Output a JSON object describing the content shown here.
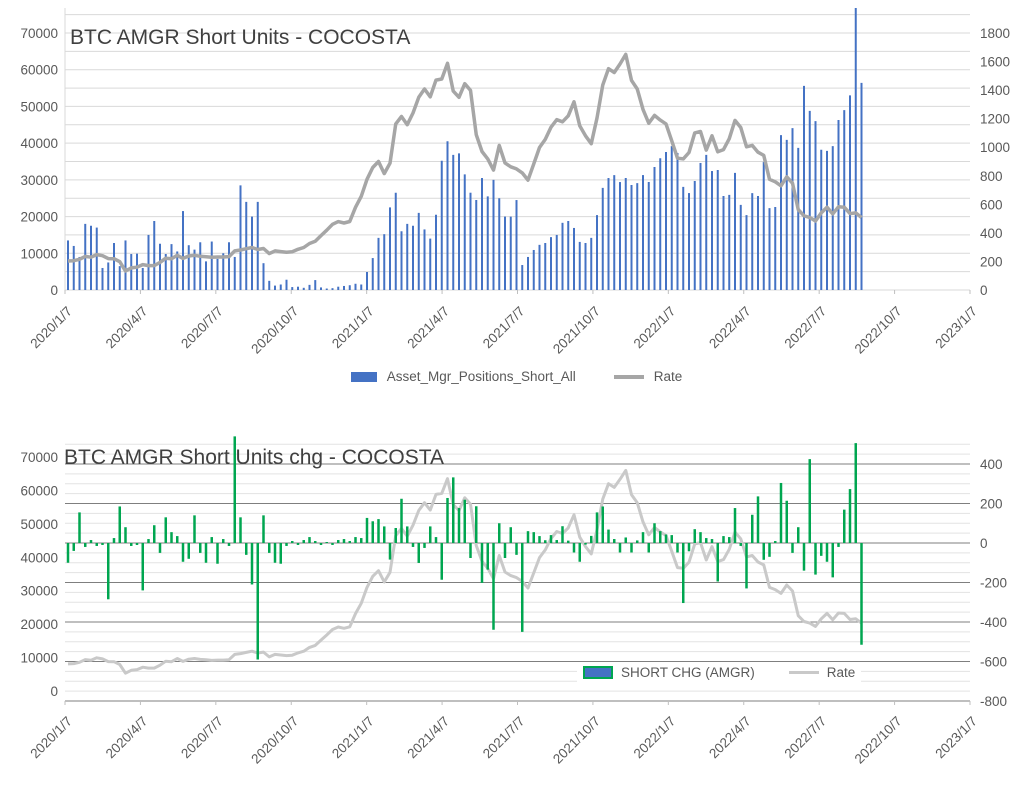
{
  "page": {
    "background": "#FFFFFF"
  },
  "colors": {
    "bar_blue": "#4472C4",
    "rate_line_top": "#A6A6A6",
    "bar_green": "#00A650",
    "rate_line_bottom": "#C9C9C9",
    "grid_minor_top": "#D9D9D9",
    "grid_minor_bottom": "#E3E3E3",
    "grid_major_bottom": "#7F7F7F",
    "axis_line": "#BFBFBF",
    "tick_text": "#595959",
    "title_text": "#404040"
  },
  "chart_data": [
    {
      "type": "bar",
      "subtype": "combo-bar-line",
      "title": "BTC AMGR Short Units - COCOSTA",
      "x_unit": "weekly COT dates from 2020/1/7 to 2022/8/30",
      "x_tick_labels": [
        "2020/1/7",
        "2020/4/7",
        "2020/7/7",
        "2020/10/7",
        "2021/1/7",
        "2021/4/7",
        "2021/7/7",
        "2021/10/7",
        "2022/1/7",
        "2022/4/7",
        "2022/7/7",
        "2022/10/7",
        "2023/1/7"
      ],
      "left_axis": {
        "min": 0,
        "max": 70000,
        "label_step": 10000,
        "grid_step": 5000
      },
      "right_axis": {
        "min": 0,
        "max": 1800,
        "label_step": 200
      },
      "legend_position": "bottom-center",
      "grid": true,
      "series": [
        {
          "name": "Asset_Mgr_Positions_Short_All",
          "type": "bar",
          "axis": "left",
          "color": "#4472C4",
          "values": [
            13500,
            12000,
            9000,
            18000,
            17500,
            17000,
            6000,
            7500,
            12800,
            6500,
            13500,
            9800,
            9900,
            6000,
            15000,
            18800,
            12600,
            9800,
            12500,
            10500,
            21500,
            12200,
            11000,
            13000,
            7800,
            13200,
            8500,
            10000,
            13000,
            9000,
            28500,
            24000,
            20000,
            24000,
            7300,
            2500,
            1200,
            1500,
            2800,
            800,
            900,
            600,
            1400,
            2700,
            700,
            400,
            500,
            900,
            1100,
            1300,
            1700,
            1500,
            4900,
            8700,
            14200,
            15200,
            22500,
            26500,
            16000,
            18000,
            17500,
            21000,
            16500,
            14000,
            20500,
            35200,
            40500,
            36800,
            37200,
            31500,
            26500,
            24500,
            30500,
            25500,
            30000,
            25000,
            20000,
            20000,
            24500,
            6800,
            9000,
            10900,
            12300,
            12800,
            14400,
            15000,
            18300,
            18800,
            16900,
            13100,
            12800,
            14200,
            20400,
            27800,
            30500,
            31300,
            29400,
            30500,
            28600,
            29100,
            31300,
            29400,
            33500,
            35900,
            37600,
            39200,
            37300,
            28100,
            26400,
            29700,
            34600,
            36800,
            32400,
            32700,
            25600,
            25900,
            31900,
            23200,
            20400,
            26400,
            25600,
            34900,
            22300,
            22600,
            42200,
            40900,
            44100,
            38700,
            55600,
            48800,
            46000,
            38200,
            37900,
            39200,
            46300,
            49000,
            53000,
            76800,
            56400
          ]
        },
        {
          "name": "Rate",
          "type": "line",
          "axis": "right",
          "color": "#A6A6A6",
          "values": [
            203,
            205,
            215,
            235,
            230,
            248,
            240,
            220,
            219,
            198,
            133,
            155,
            160,
            178,
            171,
            171,
            193,
            223,
            219,
            243,
            221,
            238,
            243,
            236,
            233,
            229,
            231,
            231,
            234,
            274,
            280,
            289,
            298,
            284,
            291,
            255,
            274,
            269,
            265,
            268,
            285,
            298,
            326,
            341,
            381,
            419,
            460,
            479,
            469,
            480,
            579,
            656,
            775,
            858,
            900,
            815,
            888,
            1163,
            1215,
            1158,
            1240,
            1350,
            1408,
            1353,
            1470,
            1478,
            1588,
            1393,
            1350,
            1445,
            1398,
            1088,
            970,
            918,
            840,
            1013,
            890,
            863,
            848,
            820,
            770,
            883,
            998,
            1055,
            1140,
            1193,
            1178,
            1220,
            1318,
            1150,
            1080,
            1025,
            1205,
            1435,
            1550,
            1523,
            1583,
            1650,
            1468,
            1408,
            1265,
            1168,
            1223,
            1190,
            1163,
            1045,
            923,
            918,
            963,
            1100,
            1110,
            980,
            1080,
            968,
            983,
            1060,
            1188,
            1138,
            1003,
            1013,
            965,
            943,
            775,
            758,
            730,
            793,
            748,
            563,
            520,
            508,
            483,
            540,
            580,
            533,
            583,
            580,
            535,
            540,
            508
          ]
        }
      ]
    },
    {
      "type": "bar",
      "subtype": "combo-bar-line",
      "title": "BTC AMGR Short Units chg - COCOSTA",
      "x_unit": "weekly COT dates from 2020/1/7 to 2022/8/30",
      "x_tick_labels": [
        "2020/1/7",
        "2020/4/7",
        "2020/7/7",
        "2020/10/7",
        "2021/1/7",
        "2021/4/7",
        "2021/7/7",
        "2021/10/7",
        "2022/1/7",
        "2022/4/7",
        "2022/7/7",
        "2022/10/7",
        "2023/1/7"
      ],
      "left_axis": {
        "min": 0,
        "max": 70000,
        "label_step": 10000
      },
      "right_axis": {
        "min": -800,
        "max": 400,
        "label_step": 200,
        "grid_step": 50
      },
      "legend_position": "inside-bottom-right",
      "grid": true,
      "series": [
        {
          "name": "SHORT CHG (AMGR)",
          "type": "bar",
          "axis": "right",
          "color": "#00A650",
          "swatch_fill": "#4472C4",
          "values": [
            -100,
            -40,
            155,
            -20,
            15,
            -15,
            -10,
            -285,
            25,
            185,
            80,
            -15,
            -10,
            -240,
            20,
            90,
            -50,
            130,
            55,
            35,
            -95,
            -80,
            140,
            -50,
            -100,
            30,
            -105,
            20,
            -15,
            540,
            130,
            -60,
            -210,
            -590,
            140,
            -50,
            -100,
            -105,
            -15,
            10,
            -10,
            15,
            30,
            10,
            -10,
            5,
            -10,
            15,
            20,
            10,
            30,
            25,
            127,
            110,
            121,
            84,
            -84,
            76,
            224,
            84,
            -20,
            -101,
            -25,
            84,
            30,
            -186,
            228,
            332,
            177,
            219,
            -76,
            186,
            -202,
            -135,
            -439,
            100,
            -76,
            80,
            -60,
            -450,
            60,
            55,
            35,
            14,
            40,
            15,
            85,
            12,
            -48,
            -95,
            -8,
            36,
            155,
            185,
            68,
            20,
            -48,
            28,
            -48,
            13,
            55,
            -48,
            100,
            60,
            43,
            40,
            -48,
            -304,
            -42,
            70,
            55,
            25,
            20,
            -195,
            35,
            30,
            177,
            -15,
            -230,
            143,
            236,
            -85,
            -70,
            10,
            304,
            214,
            -50,
            80,
            -140,
            425,
            -160,
            -65,
            -95,
            -174,
            -20,
            169,
            273,
            506,
            -515
          ]
        },
        {
          "name": "Rate",
          "type": "line",
          "axis": "left",
          "color": "#C9C9C9",
          "derived_from": "chart_data.0.series.1.values",
          "scale": 40
        }
      ]
    }
  ]
}
